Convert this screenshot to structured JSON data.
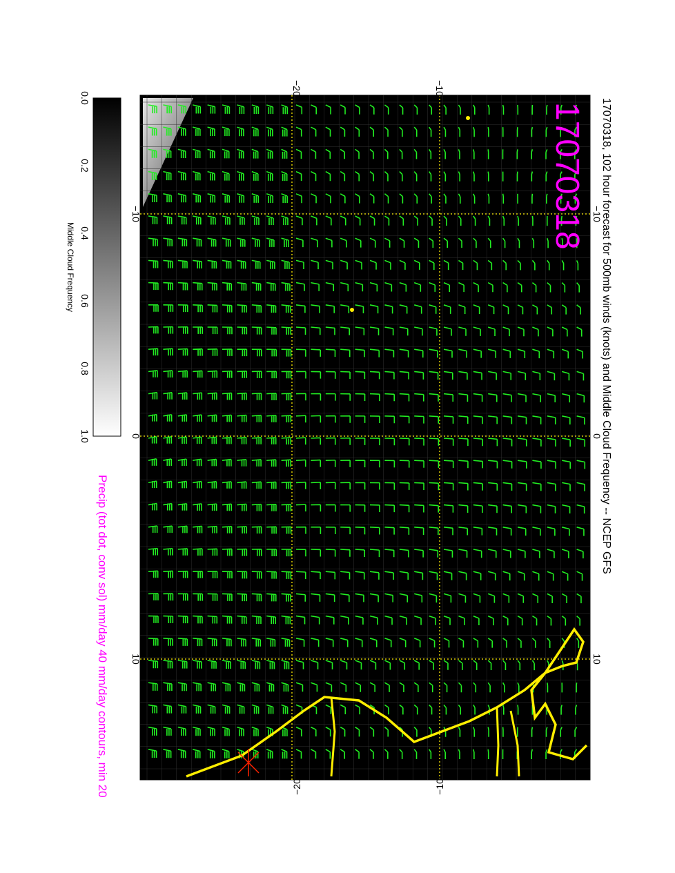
{
  "title": "17070318, 102 hour forecast for 500mb winds (knots) and Middle Cloud Frequency -- NCEP GFS",
  "stamp": "17070318",
  "axes": {
    "top": [
      "−20",
      "−10"
    ],
    "bottom": [
      "−20",
      "−10"
    ],
    "left": [
      "−10",
      "0",
      "10"
    ],
    "right": [
      "−10",
      "0",
      "10"
    ]
  },
  "colorbar": {
    "label": "Middle Cloud Frequency",
    "ticks": [
      "0.0",
      "0.2",
      "0.4",
      "0.6",
      "0.8",
      "1.0"
    ]
  },
  "footer": "Precip (tot dot, conv sol) mm/day 40 mm/day contours, min 20"
}
